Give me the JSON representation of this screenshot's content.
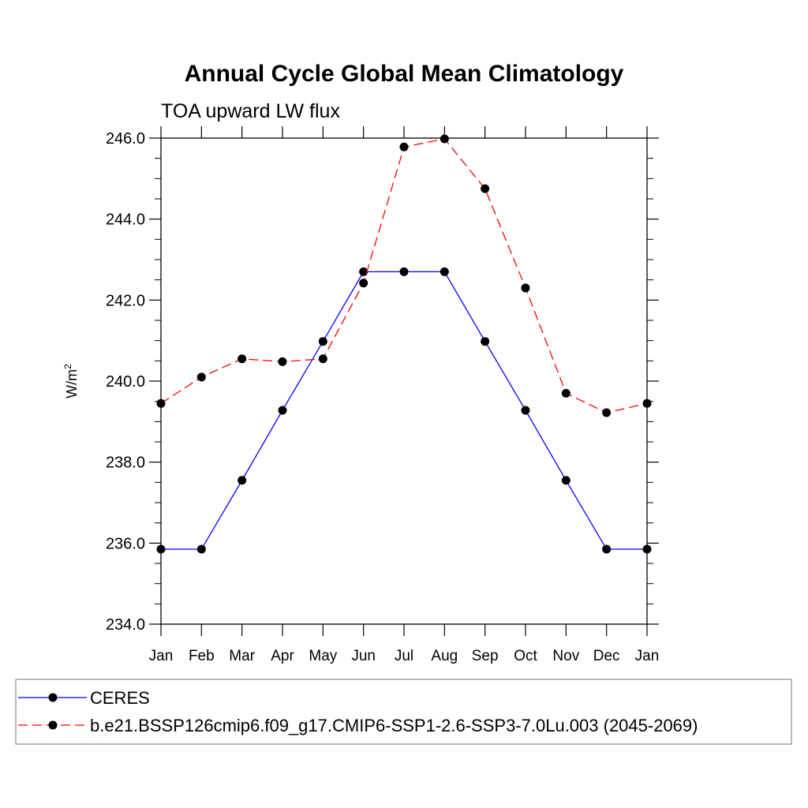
{
  "chart_data": {
    "type": "line",
    "title": "Annual Cycle Global Mean Climatology",
    "subtitle": "TOA upward LW flux",
    "ylabel": "W/m",
    "ylabel_sup": "2",
    "ylim": [
      234.0,
      246.0
    ],
    "yticks": [
      "234.0",
      "236.0",
      "238.0",
      "240.0",
      "242.0",
      "244.0",
      "246.0"
    ],
    "ytick_values": [
      234,
      236,
      238,
      240,
      242,
      244,
      246
    ],
    "categories": [
      "Jan",
      "Feb",
      "Mar",
      "Apr",
      "May",
      "Jun",
      "Jul",
      "Aug",
      "Sep",
      "Oct",
      "Nov",
      "Dec",
      "Jan"
    ],
    "grid": false,
    "legend_position": "bottom",
    "series": [
      {
        "name": "CERES",
        "color": "#0000ff",
        "dash": "solid",
        "marker": "filled-circle",
        "values": [
          235.85,
          235.85,
          237.55,
          239.28,
          240.98,
          242.7,
          242.7,
          242.7,
          240.98,
          239.28,
          237.55,
          235.85,
          235.85
        ]
      },
      {
        "name": "b.e21.BSSP126cmip6.f09_g17.CMIP6-SSP1-2.6-SSP3-7.0Lu.003 (2045-2069)",
        "color": "#ff0000",
        "dash": "dashed",
        "marker": "filled-circle",
        "values": [
          239.45,
          240.1,
          240.55,
          240.48,
          240.55,
          242.42,
          245.78,
          245.98,
          244.75,
          242.3,
          239.7,
          239.22,
          239.45
        ]
      }
    ]
  }
}
